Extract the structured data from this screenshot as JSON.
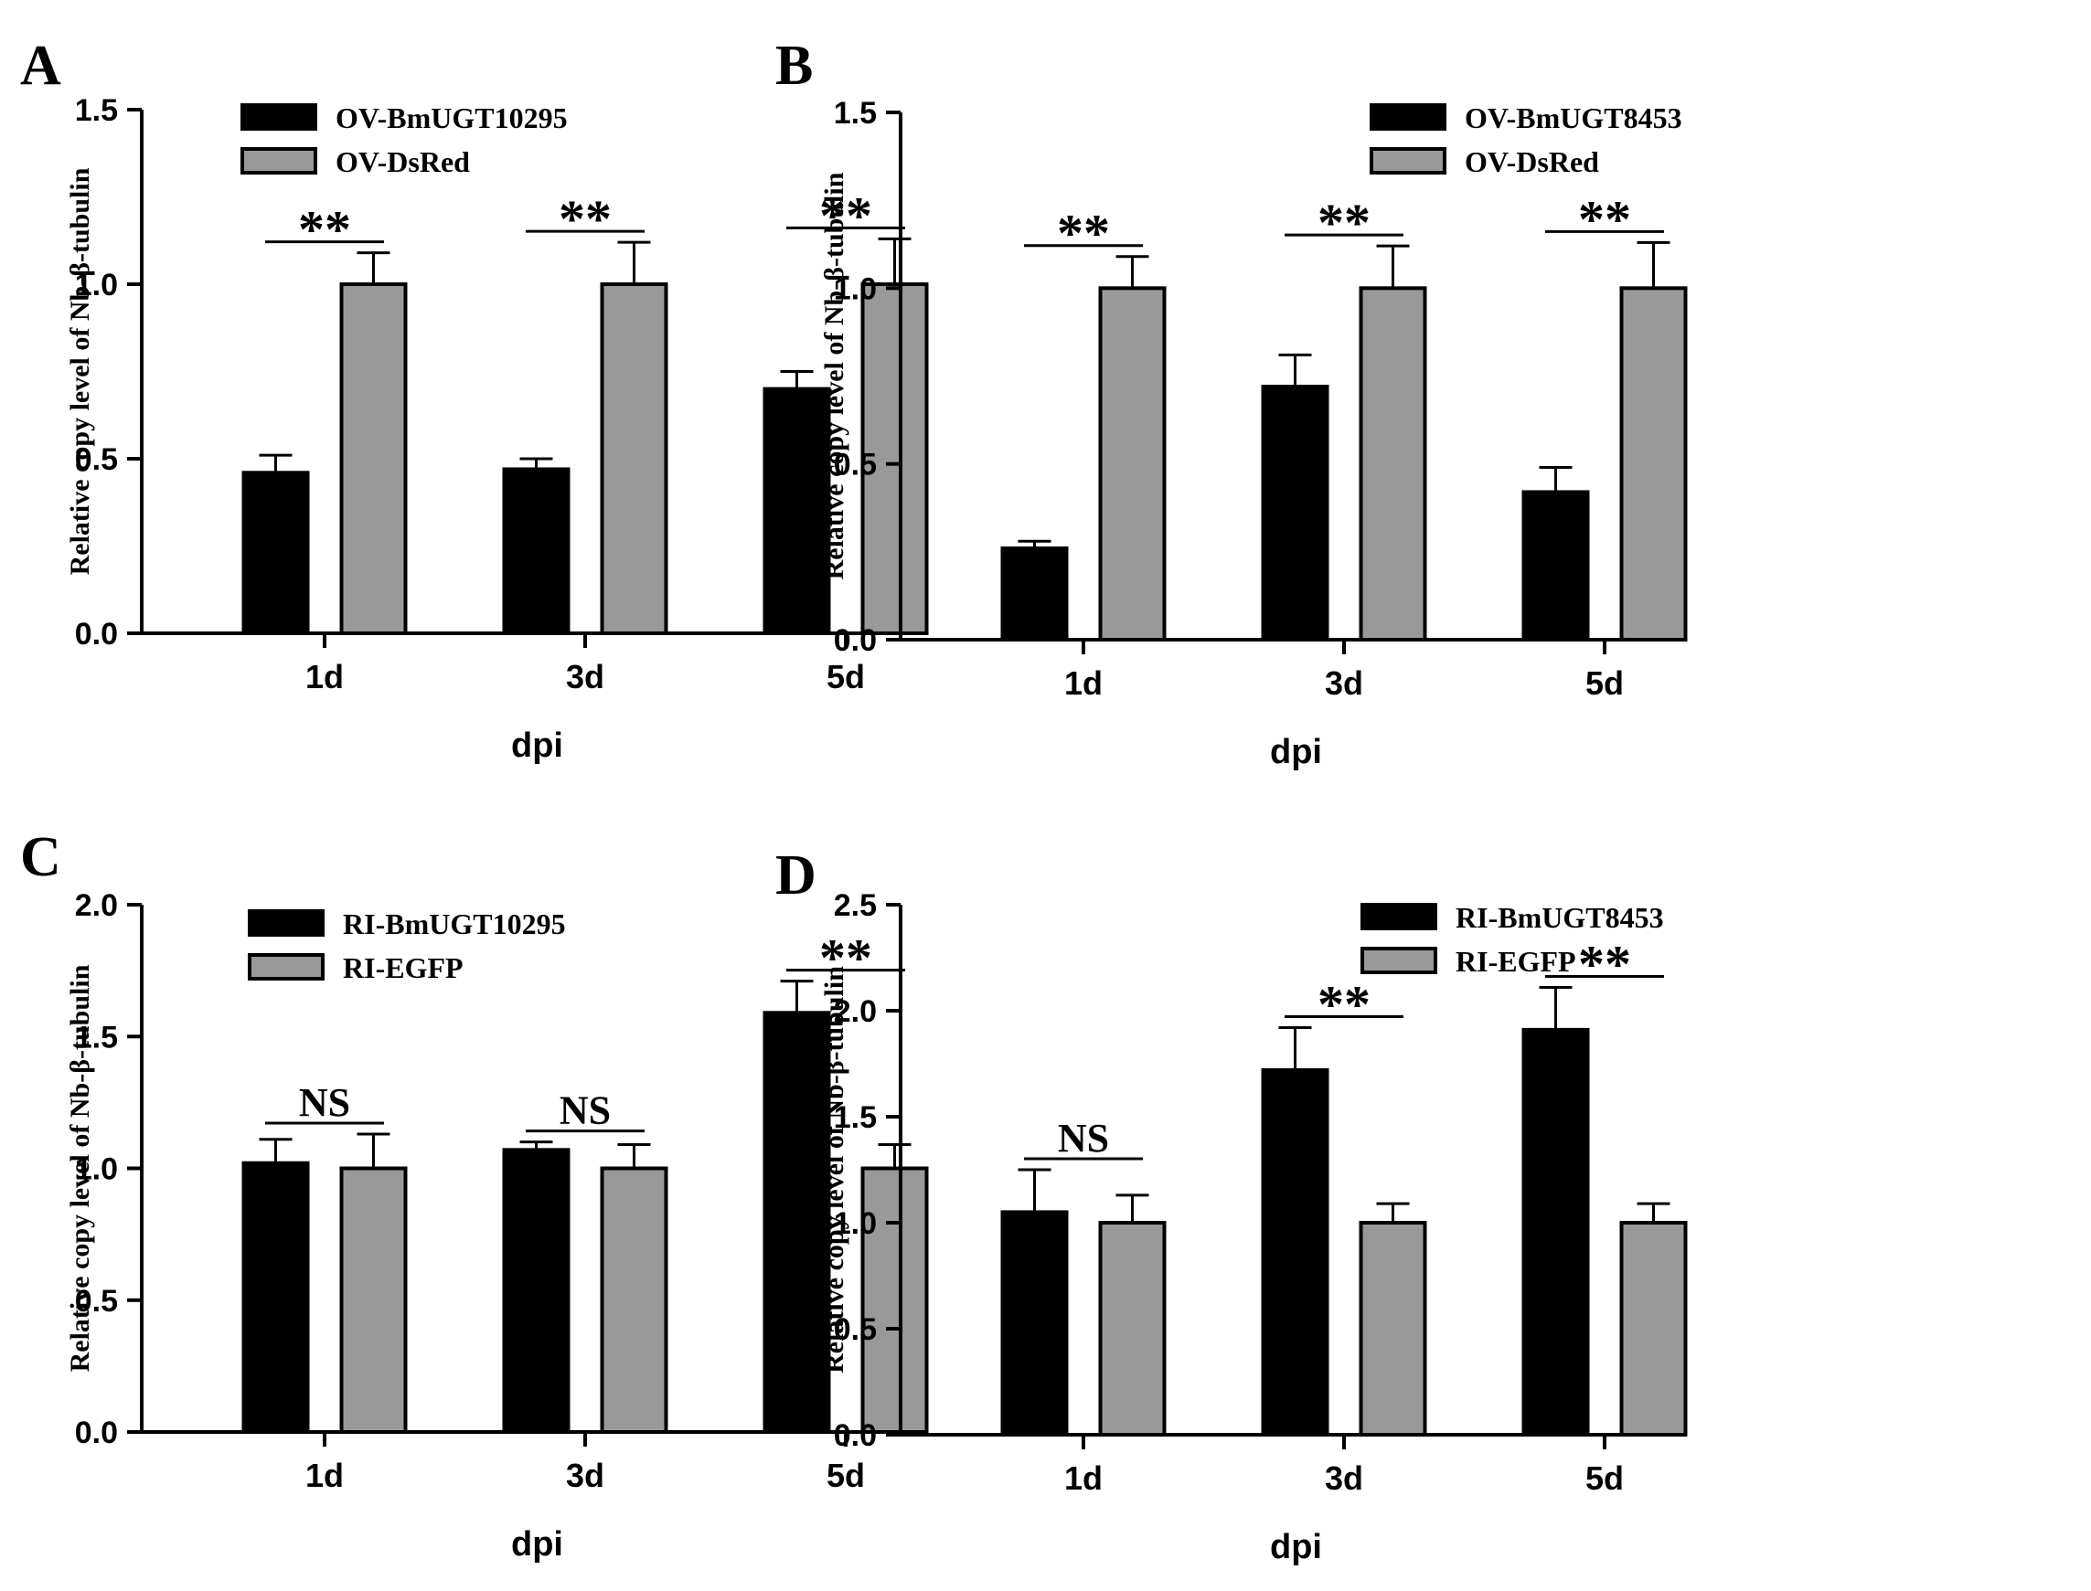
{
  "colors": {
    "series_a": "#000000",
    "series_b": "#999999",
    "axis": "#000000"
  },
  "chart_data": [
    {
      "panel_label": "A",
      "type": "bar",
      "categories": [
        "1d",
        "3d",
        "5d"
      ],
      "xlabel": "dpi",
      "ylabel": "Relative copy level of  Nb-β-tubulin",
      "ylim": [
        0,
        1.5
      ],
      "yticks": [
        0.0,
        0.5,
        1.0,
        1.5
      ],
      "ytick_labels": [
        "0.0",
        "0.5",
        "1.0",
        "1.5"
      ],
      "legend_position": "top-left",
      "series": [
        {
          "name": "OV-BmUGT10295",
          "color": "#000000",
          "values": [
            0.46,
            0.47,
            0.7
          ],
          "errors": [
            0.05,
            0.03,
            0.05
          ]
        },
        {
          "name": "OV-DsRed",
          "color": "#999999",
          "values": [
            1.0,
            1.0,
            1.0
          ],
          "errors": [
            0.09,
            0.12,
            0.13
          ]
        }
      ],
      "significance": [
        {
          "category": "1d",
          "label": "**"
        },
        {
          "category": "3d",
          "label": "**"
        },
        {
          "category": "5d",
          "label": "**"
        }
      ]
    },
    {
      "panel_label": "B",
      "type": "bar",
      "categories": [
        "1d",
        "3d",
        "5d"
      ],
      "xlabel": "dpi",
      "ylabel": "Relative copy level of  Nb-β-tubulin",
      "ylim": [
        0,
        1.5
      ],
      "yticks": [
        0.0,
        0.5,
        1.0,
        1.5
      ],
      "ytick_labels": [
        "0.0",
        "0.5",
        "1.0",
        "1.5"
      ],
      "legend_position": "top-left",
      "series": [
        {
          "name": "OV-BmUGT8453",
          "color": "#000000",
          "values": [
            0.26,
            0.72,
            0.42
          ],
          "errors": [
            0.02,
            0.09,
            0.07
          ]
        },
        {
          "name": "OV-DsRed",
          "color": "#999999",
          "values": [
            1.0,
            1.0,
            1.0
          ],
          "errors": [
            0.09,
            0.12,
            0.13
          ]
        }
      ],
      "significance": [
        {
          "category": "1d",
          "label": "**"
        },
        {
          "category": "3d",
          "label": "**"
        },
        {
          "category": "5d",
          "label": "**"
        }
      ]
    },
    {
      "panel_label": "C",
      "type": "bar",
      "categories": [
        "1d",
        "3d",
        "5d"
      ],
      "xlabel": "dpi",
      "ylabel": "Relative copy level of  Nb-β-tubulin",
      "ylim": [
        0,
        2.0
      ],
      "yticks": [
        0.0,
        0.5,
        1.0,
        1.5,
        2.0
      ],
      "ytick_labels": [
        "0.0",
        "0.5",
        "1.0",
        "1.5",
        "2.0"
      ],
      "legend_position": "top-left",
      "series": [
        {
          "name": "RI-BmUGT10295",
          "color": "#000000",
          "values": [
            1.02,
            1.07,
            1.59
          ],
          "errors": [
            0.09,
            0.03,
            0.12
          ]
        },
        {
          "name": "RI-EGFP",
          "color": "#999999",
          "values": [
            1.0,
            1.0,
            1.0
          ],
          "errors": [
            0.13,
            0.09,
            0.09
          ]
        }
      ],
      "significance": [
        {
          "category": "1d",
          "label": "NS"
        },
        {
          "category": "3d",
          "label": "NS"
        },
        {
          "category": "5d",
          "label": "**"
        }
      ]
    },
    {
      "panel_label": "D",
      "type": "bar",
      "categories": [
        "1d",
        "3d",
        "5d"
      ],
      "xlabel": "dpi",
      "ylabel": "Relative copy level of  Nb-β-tubulin",
      "ylim": [
        0,
        2.5
      ],
      "yticks": [
        0.0,
        0.5,
        1.0,
        1.5,
        2.0,
        2.5
      ],
      "ytick_labels": [
        "0.0",
        "0.5",
        "1.0",
        "1.5",
        "2.0",
        "2.5"
      ],
      "legend_position": "top-left",
      "series": [
        {
          "name": "RI-BmUGT8453",
          "color": "#000000",
          "values": [
            1.05,
            1.72,
            1.91
          ],
          "errors": [
            0.2,
            0.2,
            0.2
          ]
        },
        {
          "name": "RI-EGFP",
          "color": "#999999",
          "values": [
            1.0,
            1.0,
            1.0
          ],
          "errors": [
            0.13,
            0.09,
            0.09
          ]
        }
      ],
      "significance": [
        {
          "category": "1d",
          "label": "NS"
        },
        {
          "category": "3d",
          "label": "**"
        },
        {
          "category": "5d",
          "label": "**"
        }
      ]
    }
  ]
}
